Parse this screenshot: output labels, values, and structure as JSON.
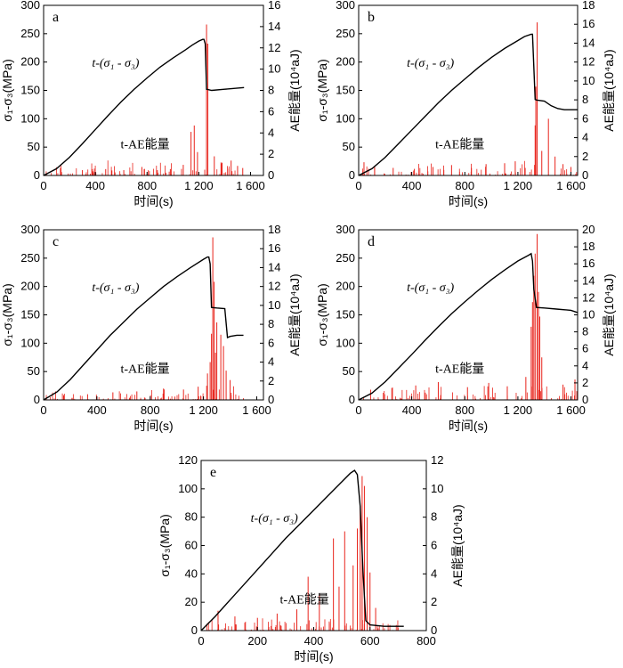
{
  "figure": {
    "y_left_label": "σ₁-σ₃(MPa)",
    "y_right_label": "AE能量(10⁴aJ)",
    "x_label": "时间(s)",
    "curve_label_stress": "t-(σ₁ - σ₃)",
    "curve_label_ae": "t-AE能量",
    "colors": {
      "stress": "#000000",
      "ae": "#e8231b"
    }
  },
  "chart_data": [
    {
      "panel": "a",
      "type": "line",
      "xlim": [
        0,
        1700
      ],
      "ylim_left": [
        0,
        300
      ],
      "ylim_right": [
        0,
        16
      ],
      "xticks": [
        0,
        400,
        800,
        1200,
        1600
      ],
      "xtick_labels": [
        "0",
        "400",
        "800",
        "1 200",
        "1 600"
      ],
      "yticks_left": [
        0,
        50,
        100,
        150,
        200,
        250,
        300
      ],
      "yticks_right": [
        0,
        2,
        4,
        6,
        8,
        10,
        12,
        14,
        16
      ],
      "stress": {
        "x": [
          0,
          100,
          200,
          300,
          400,
          500,
          600,
          700,
          800,
          900,
          1000,
          1100,
          1150,
          1200,
          1230,
          1240,
          1250,
          1260,
          1300,
          1400,
          1500,
          1550
        ],
        "y": [
          0,
          12,
          32,
          56,
          81,
          106,
          130,
          152,
          172,
          191,
          207,
          222,
          230,
          237,
          240,
          240,
          232,
          152,
          150,
          152,
          154,
          155
        ]
      },
      "ae_spikes": [
        {
          "x": 1260,
          "y": 14.2
        },
        {
          "x": 1270,
          "y": 12.4
        },
        {
          "x": 1165,
          "y": 4.7
        },
        {
          "x": 1140,
          "y": 4.1
        },
        {
          "x": 1190,
          "y": 2.2
        },
        {
          "x": 1320,
          "y": 1.8
        },
        {
          "x": 1380,
          "y": 1.2
        },
        {
          "x": 1450,
          "y": 1.4
        },
        {
          "x": 1500,
          "y": 0.9
        },
        {
          "x": 1540,
          "y": 0.7
        },
        {
          "x": 130,
          "y": 0.7
        },
        {
          "x": 300,
          "y": 0.5
        },
        {
          "x": 480,
          "y": 0.6
        },
        {
          "x": 620,
          "y": 0.5
        },
        {
          "x": 760,
          "y": 0.8
        },
        {
          "x": 880,
          "y": 0.5
        },
        {
          "x": 980,
          "y": 0.6
        },
        {
          "x": 1080,
          "y": 1.0
        }
      ]
    },
    {
      "panel": "b",
      "type": "line",
      "xlim": [
        0,
        1650
      ],
      "ylim_left": [
        0,
        300
      ],
      "ylim_right": [
        0,
        18
      ],
      "xticks": [
        0,
        400,
        800,
        1200,
        1600
      ],
      "xtick_labels": [
        "0",
        "400",
        "800",
        "1 200",
        "1 600"
      ],
      "yticks_left": [
        0,
        50,
        100,
        150,
        200,
        250,
        300
      ],
      "yticks_right": [
        0,
        2,
        4,
        6,
        8,
        10,
        12,
        14,
        16,
        18
      ],
      "stress": {
        "x": [
          0,
          100,
          200,
          300,
          400,
          500,
          600,
          700,
          800,
          900,
          1000,
          1100,
          1200,
          1250,
          1300,
          1310,
          1330,
          1340,
          1400,
          1450,
          1500,
          1550,
          1600,
          1650
        ],
        "y": [
          0,
          12,
          32,
          56,
          80,
          104,
          128,
          150,
          170,
          190,
          208,
          224,
          238,
          245,
          249,
          249,
          134,
          133,
          131,
          123,
          118,
          116,
          116,
          116
        ]
      },
      "ae_spikes": [
        {
          "x": 1345,
          "y": 16.2
        },
        {
          "x": 1335,
          "y": 9.4
        },
        {
          "x": 1330,
          "y": 5.3
        },
        {
          "x": 1430,
          "y": 6.0
        },
        {
          "x": 1380,
          "y": 2.6
        },
        {
          "x": 1180,
          "y": 1.5
        },
        {
          "x": 1100,
          "y": 1.3
        },
        {
          "x": 1480,
          "y": 2.0
        },
        {
          "x": 1540,
          "y": 1.2
        },
        {
          "x": 1600,
          "y": 0.9
        },
        {
          "x": 40,
          "y": 1.4
        },
        {
          "x": 120,
          "y": 1.0
        },
        {
          "x": 260,
          "y": 0.8
        },
        {
          "x": 420,
          "y": 0.7
        },
        {
          "x": 560,
          "y": 0.9
        },
        {
          "x": 700,
          "y": 1.1
        },
        {
          "x": 850,
          "y": 0.8
        },
        {
          "x": 960,
          "y": 1.2
        }
      ]
    },
    {
      "panel": "c",
      "type": "line",
      "xlim": [
        0,
        1650
      ],
      "ylim_left": [
        0,
        300
      ],
      "ylim_right": [
        0,
        18
      ],
      "xticks": [
        0,
        400,
        800,
        1200,
        1600
      ],
      "xtick_labels": [
        "0",
        "400",
        "800",
        "1 200",
        "1 600"
      ],
      "yticks_left": [
        0,
        50,
        100,
        150,
        200,
        250,
        300
      ],
      "yticks_right": [
        0,
        2,
        4,
        6,
        8,
        10,
        12,
        14,
        16,
        18
      ],
      "stress": {
        "x": [
          0,
          100,
          200,
          300,
          400,
          500,
          600,
          700,
          800,
          900,
          1000,
          1100,
          1200,
          1230,
          1240,
          1250,
          1260,
          1300,
          1360,
          1380,
          1400,
          1450,
          1500
        ],
        "y": [
          0,
          14,
          36,
          62,
          88,
          114,
          137,
          160,
          180,
          200,
          217,
          233,
          248,
          252,
          252,
          240,
          163,
          162,
          161,
          110,
          112,
          114,
          114
        ]
      },
      "ae_spikes": [
        {
          "x": 1270,
          "y": 17.2
        },
        {
          "x": 1280,
          "y": 12.5
        },
        {
          "x": 1300,
          "y": 8.2
        },
        {
          "x": 1330,
          "y": 6.9
        },
        {
          "x": 1260,
          "y": 7.0
        },
        {
          "x": 1350,
          "y": 5.7
        },
        {
          "x": 1290,
          "y": 5.0
        },
        {
          "x": 1370,
          "y": 3.1
        },
        {
          "x": 1400,
          "y": 2.1
        },
        {
          "x": 1250,
          "y": 4.0
        },
        {
          "x": 1230,
          "y": 2.8
        },
        {
          "x": 1160,
          "y": 1.4
        },
        {
          "x": 1050,
          "y": 1.1
        },
        {
          "x": 900,
          "y": 1.2
        },
        {
          "x": 700,
          "y": 0.9
        },
        {
          "x": 520,
          "y": 0.8
        },
        {
          "x": 330,
          "y": 0.6
        },
        {
          "x": 150,
          "y": 0.5
        }
      ]
    },
    {
      "panel": "d",
      "type": "line",
      "xlim": [
        0,
        1650
      ],
      "ylim_left": [
        0,
        300
      ],
      "ylim_right": [
        0,
        20
      ],
      "xticks": [
        0,
        400,
        800,
        1200,
        1600
      ],
      "xtick_labels": [
        "0",
        "400",
        "800",
        "1 200",
        "1 600"
      ],
      "yticks_left": [
        0,
        50,
        100,
        150,
        200,
        250,
        300
      ],
      "yticks_right": [
        0,
        2,
        4,
        6,
        8,
        10,
        12,
        14,
        16,
        18,
        20
      ],
      "stress": {
        "x": [
          0,
          100,
          200,
          300,
          400,
          500,
          600,
          700,
          800,
          900,
          1000,
          1100,
          1200,
          1280,
          1300,
          1310,
          1320,
          1340,
          1400,
          1500,
          1600,
          1650
        ],
        "y": [
          0,
          12,
          32,
          56,
          80,
          105,
          129,
          152,
          173,
          193,
          212,
          229,
          245,
          255,
          258,
          245,
          195,
          163,
          162,
          160,
          158,
          154
        ]
      },
      "ae_spikes": [
        {
          "x": 1345,
          "y": 19.5
        },
        {
          "x": 1330,
          "y": 17.2
        },
        {
          "x": 1320,
          "y": 14.6
        },
        {
          "x": 1310,
          "y": 11.5
        },
        {
          "x": 1355,
          "y": 12.7
        },
        {
          "x": 1365,
          "y": 9.8
        },
        {
          "x": 1300,
          "y": 8.6
        },
        {
          "x": 1380,
          "y": 5.0
        },
        {
          "x": 1260,
          "y": 2.7
        },
        {
          "x": 1540,
          "y": 1.8
        },
        {
          "x": 1630,
          "y": 2.4
        },
        {
          "x": 1120,
          "y": 1.6
        },
        {
          "x": 980,
          "y": 2.0
        },
        {
          "x": 820,
          "y": 1.5
        },
        {
          "x": 600,
          "y": 2.1
        },
        {
          "x": 430,
          "y": 1.7
        },
        {
          "x": 250,
          "y": 1.4
        },
        {
          "x": 90,
          "y": 1.2
        }
      ]
    },
    {
      "panel": "e",
      "type": "line",
      "xlim": [
        0,
        800
      ],
      "ylim_left": [
        0,
        120
      ],
      "ylim_right": [
        0,
        12
      ],
      "xticks": [
        0,
        200,
        400,
        600,
        800
      ],
      "xtick_labels": [
        "0",
        "200",
        "400",
        "600",
        "800"
      ],
      "yticks_left": [
        0,
        20,
        40,
        60,
        80,
        100,
        120
      ],
      "yticks_right": [
        0,
        2,
        4,
        6,
        8,
        10,
        12
      ],
      "stress": {
        "x": [
          0,
          50,
          100,
          150,
          200,
          250,
          300,
          350,
          400,
          450,
          500,
          530,
          545,
          555,
          565,
          575,
          585,
          600,
          650,
          700,
          720
        ],
        "y": [
          0,
          10,
          21,
          32,
          43,
          54,
          65,
          75,
          85,
          95,
          105,
          111,
          113,
          110,
          88,
          42,
          7,
          4,
          3,
          3,
          3
        ]
      },
      "ae_spikes": [
        {
          "x": 572,
          "y": 10.9
        },
        {
          "x": 580,
          "y": 10.2
        },
        {
          "x": 565,
          "y": 8.8
        },
        {
          "x": 590,
          "y": 8.0
        },
        {
          "x": 555,
          "y": 7.2
        },
        {
          "x": 470,
          "y": 6.5
        },
        {
          "x": 510,
          "y": 7.0
        },
        {
          "x": 540,
          "y": 4.6
        },
        {
          "x": 600,
          "y": 4.1
        },
        {
          "x": 380,
          "y": 3.8
        },
        {
          "x": 420,
          "y": 2.6
        },
        {
          "x": 490,
          "y": 3.1
        },
        {
          "x": 620,
          "y": 1.6
        },
        {
          "x": 340,
          "y": 1.5
        },
        {
          "x": 270,
          "y": 1.2
        },
        {
          "x": 200,
          "y": 0.9
        },
        {
          "x": 120,
          "y": 1.0
        },
        {
          "x": 60,
          "y": 1.4
        }
      ]
    }
  ]
}
